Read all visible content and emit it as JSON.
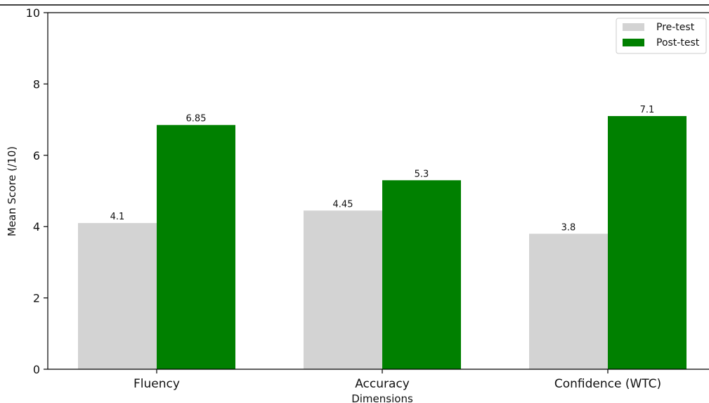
{
  "chart_data": {
    "type": "bar",
    "categories": [
      "Fluency",
      "Accuracy",
      "Confidence (WTC)"
    ],
    "series": [
      {
        "name": "Pre-test",
        "color": "#d3d3d3",
        "values": [
          4.1,
          4.45,
          3.8
        ],
        "labels": [
          "4.1",
          "4.45",
          "3.8"
        ]
      },
      {
        "name": "Post-test",
        "color": "#008000",
        "values": [
          6.85,
          5.3,
          7.1
        ],
        "labels": [
          "6.85",
          "5.3",
          "7.1"
        ]
      }
    ],
    "title": "",
    "xlabel": "Dimensions",
    "ylabel": "Mean Score (/10)",
    "ylim": [
      0,
      10
    ],
    "yticks": [
      0,
      2,
      4,
      6,
      8,
      10
    ],
    "grid": false,
    "legend": {
      "position": "top-right"
    }
  }
}
